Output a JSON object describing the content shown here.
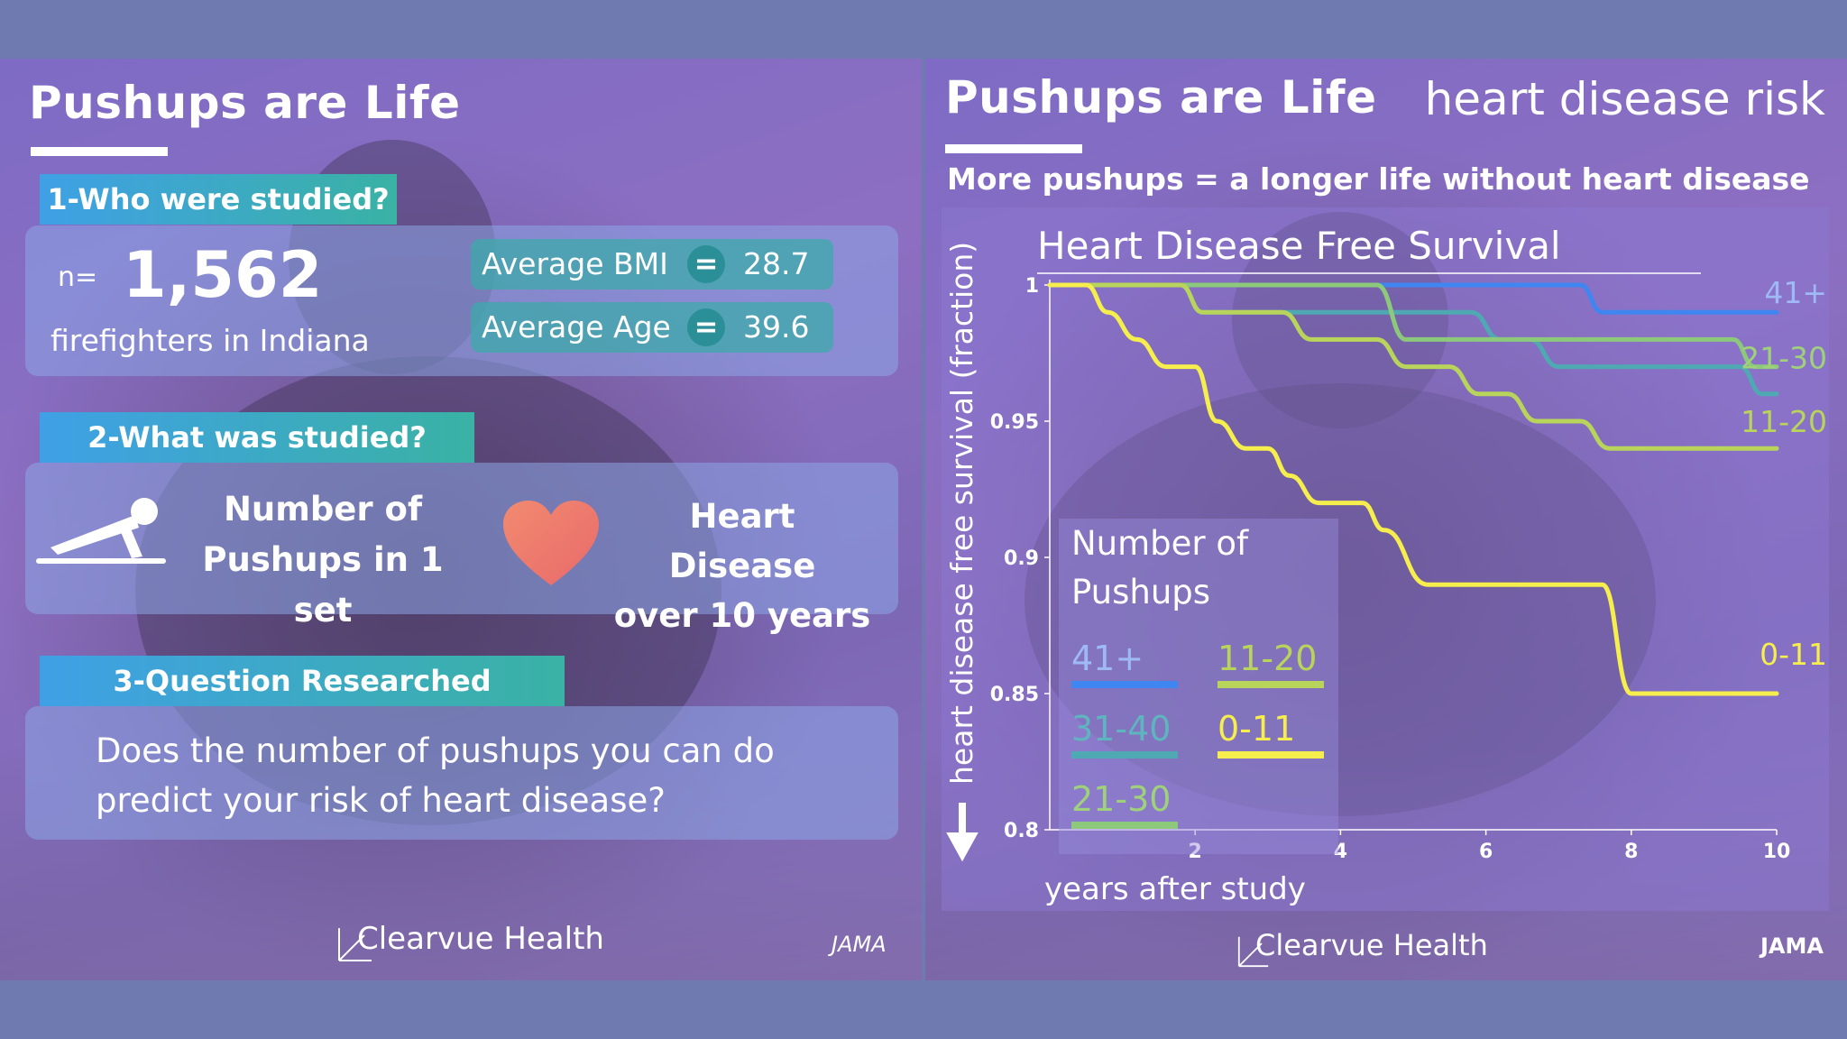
{
  "left": {
    "title": "Pushups are Life",
    "section1": {
      "label": "1-Who were studied?",
      "n_prefix": "n=",
      "n_value": "1,562",
      "population": "firefighters in Indiana",
      "bmi_label": "Average BMI",
      "bmi_value": "28.7",
      "age_label": "Average Age",
      "age_value": "39.6",
      "equals": "="
    },
    "section2": {
      "label": "2-What was studied?",
      "exposure_line1": "Number of",
      "exposure_line2": "Pushups in 1 set",
      "outcome_line1": "Heart Disease",
      "outcome_line2": "over 10 years"
    },
    "section3": {
      "label": "3-Question Researched",
      "question_line1": "Does the number of pushups you can do",
      "question_line2": "predict your risk of heart disease?"
    },
    "logo": "Clearvue Health",
    "source": "JAMA"
  },
  "right": {
    "title": "Pushups are Life",
    "topic": "heart disease risk",
    "subtitle": "More pushups = a longer life without heart disease",
    "logo": "Clearvue Health",
    "source": "JAMA"
  },
  "chart_data": {
    "type": "line",
    "title": "Heart Disease Free Survival",
    "xlabel": "years after study",
    "ylabel": "heart disease free survival (fraction)",
    "xlim": [
      0,
      10
    ],
    "ylim": [
      0.8,
      1.0
    ],
    "xticks": [
      "2",
      "4",
      "6",
      "8",
      "10"
    ],
    "yticks": [
      "0.8",
      "0.85",
      "0.9",
      "0.95",
      "1"
    ],
    "legend_title_line1": "Number of",
    "legend_title_line2": "Pushups",
    "legend_position": "center-left",
    "series": [
      {
        "name": "41+",
        "color": "#3f86f0",
        "x": [
          0,
          7.3,
          7.6,
          10
        ],
        "y": [
          1.0,
          1.0,
          0.99,
          0.99
        ]
      },
      {
        "name": "31-40",
        "color": "#4fa9b3",
        "x": [
          0,
          1.8,
          2.1,
          5.8,
          6.2,
          6.6,
          7.0,
          9.5,
          9.8,
          10
        ],
        "y": [
          1.0,
          1.0,
          0.99,
          0.99,
          0.98,
          0.98,
          0.97,
          0.97,
          0.96,
          0.96
        ]
      },
      {
        "name": "21-30",
        "color": "#8cc97a",
        "x": [
          0,
          4.5,
          4.9,
          9.4,
          9.7,
          10
        ],
        "y": [
          1.0,
          1.0,
          0.98,
          0.98,
          0.97,
          0.97
        ]
      },
      {
        "name": "11-20",
        "color": "#b8d45a",
        "x": [
          0,
          1.8,
          2.1,
          3.2,
          3.6,
          4.5,
          4.9,
          5.5,
          5.9,
          6.3,
          6.7,
          7.3,
          7.7,
          10
        ],
        "y": [
          1.0,
          1.0,
          0.99,
          0.99,
          0.98,
          0.98,
          0.97,
          0.97,
          0.96,
          0.96,
          0.95,
          0.95,
          0.94,
          0.94
        ]
      },
      {
        "name": "0-11",
        "color": "#f5ee4c",
        "x": [
          0,
          0.5,
          0.8,
          1.2,
          1.6,
          2.0,
          2.3,
          2.7,
          3.0,
          3.3,
          3.7,
          4.3,
          4.6,
          5.2,
          7.6,
          8.0,
          10
        ],
        "y": [
          1.0,
          1.0,
          0.99,
          0.98,
          0.97,
          0.97,
          0.95,
          0.94,
          0.94,
          0.93,
          0.92,
          0.92,
          0.91,
          0.89,
          0.89,
          0.85,
          0.85
        ]
      }
    ],
    "end_labels": [
      {
        "text": "41+",
        "color": "#9fb9f5",
        "y": 0.99
      },
      {
        "text": "21-30",
        "color": "#9fd07a",
        "y": 0.97
      },
      {
        "text": "11-20",
        "color": "#b8d45a",
        "y": 0.94
      },
      {
        "text": "0-11",
        "color": "#f5ee4c",
        "y": 0.85
      }
    ]
  }
}
